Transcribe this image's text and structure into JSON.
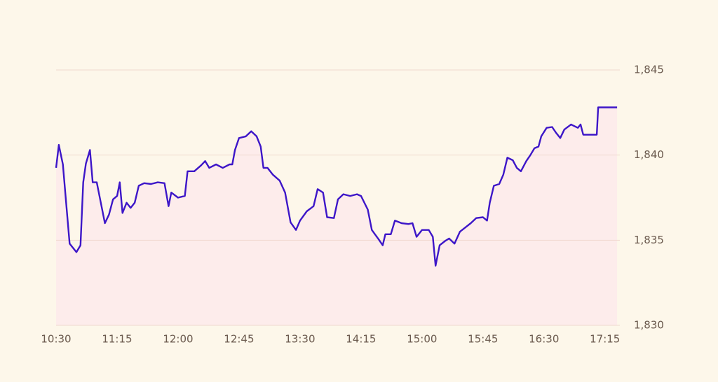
{
  "chart_data": {
    "type": "line",
    "x": [
      "10:30",
      "10:32",
      "10:35",
      "10:37",
      "10:40",
      "10:45",
      "10:48",
      "10:50",
      "10:52",
      "10:55",
      "10:57",
      "11:00",
      "11:03",
      "11:06",
      "11:09",
      "11:12",
      "11:15",
      "11:17",
      "11:19",
      "11:22",
      "11:25",
      "11:28",
      "11:31",
      "11:35",
      "11:40",
      "11:45",
      "11:50",
      "11:53",
      "11:55",
      "12:00",
      "12:05",
      "12:07",
      "12:12",
      "12:17",
      "12:20",
      "12:23",
      "12:28",
      "12:33",
      "12:38",
      "12:40",
      "12:42",
      "12:45",
      "12:50",
      "12:54",
      "12:58",
      "13:01",
      "13:03",
      "13:06",
      "13:10",
      "13:15",
      "13:19",
      "13:23",
      "13:27",
      "13:30",
      "13:35",
      "13:40",
      "13:43",
      "13:47",
      "13:50",
      "13:55",
      "13:58",
      "14:02",
      "14:07",
      "14:12",
      "14:15",
      "14:20",
      "14:23",
      "14:28",
      "14:31",
      "14:33",
      "14:37",
      "14:40",
      "14:45",
      "14:50",
      "14:53",
      "14:56",
      "15:00",
      "15:05",
      "15:08",
      "15:10",
      "15:13",
      "15:17",
      "15:20",
      "15:24",
      "15:28",
      "15:32",
      "15:36",
      "15:40",
      "15:45",
      "15:48",
      "15:50",
      "15:53",
      "15:57",
      "16:00",
      "16:03",
      "16:07",
      "16:10",
      "16:13",
      "16:17",
      "16:20",
      "16:23",
      "16:26",
      "16:28",
      "16:32",
      "16:36",
      "16:39",
      "16:42",
      "16:45",
      "16:50",
      "16:55",
      "16:57",
      "16:59",
      "17:05",
      "17:09",
      "17:10",
      "17:15",
      "17:24"
    ],
    "series": [
      {
        "color": "#3d16c8",
        "values": [
          1839.25,
          1840.6,
          1839.45,
          1837.6,
          1834.8,
          1834.3,
          1834.7,
          1838.4,
          1839.5,
          1840.3,
          1838.4,
          1838.4,
          1837.2,
          1836.0,
          1836.5,
          1837.4,
          1837.6,
          1838.4,
          1836.6,
          1837.2,
          1836.9,
          1837.2,
          1838.2,
          1838.35,
          1838.3,
          1838.4,
          1838.35,
          1837.0,
          1837.8,
          1837.5,
          1837.6,
          1839.05,
          1839.05,
          1839.4,
          1839.65,
          1839.25,
          1839.45,
          1839.25,
          1839.45,
          1839.45,
          1840.3,
          1841.0,
          1841.1,
          1841.4,
          1841.1,
          1840.5,
          1839.25,
          1839.25,
          1838.85,
          1838.5,
          1837.8,
          1836.05,
          1835.6,
          1836.15,
          1836.7,
          1837.0,
          1838.0,
          1837.8,
          1836.35,
          1836.3,
          1837.4,
          1837.7,
          1837.6,
          1837.7,
          1837.6,
          1836.8,
          1835.6,
          1835.05,
          1834.7,
          1835.35,
          1835.35,
          1836.15,
          1836.0,
          1835.95,
          1836.0,
          1835.2,
          1835.6,
          1835.6,
          1835.2,
          1833.5,
          1834.7,
          1834.95,
          1835.1,
          1834.8,
          1835.5,
          1835.75,
          1836.0,
          1836.3,
          1836.35,
          1836.15,
          1837.2,
          1838.2,
          1838.3,
          1838.85,
          1839.85,
          1839.7,
          1839.25,
          1839.05,
          1839.65,
          1840.0,
          1840.4,
          1840.5,
          1841.1,
          1841.6,
          1841.65,
          1841.3,
          1841.0,
          1841.5,
          1841.8,
          1841.6,
          1841.8,
          1841.2,
          1841.2,
          1841.2,
          1842.8,
          1842.8,
          1842.8
        ]
      }
    ],
    "area_color": "#fdeceb",
    "xlim": [
      "10:30",
      "17:26"
    ],
    "xticks": [
      "10:30",
      "11:15",
      "12:00",
      "12:45",
      "13:30",
      "14:15",
      "15:00",
      "15:45",
      "16:30",
      "17:15"
    ],
    "ylim": [
      1830,
      1845
    ],
    "yticks": [
      {
        "value": 1830,
        "label": "1,830"
      },
      {
        "value": 1835,
        "label": "1,835"
      },
      {
        "value": 1840,
        "label": "1,840"
      },
      {
        "value": 1845,
        "label": "1,845"
      }
    ],
    "grid": true
  }
}
